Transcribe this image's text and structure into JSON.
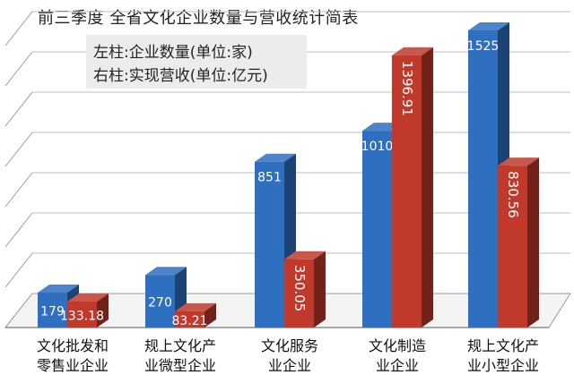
{
  "chart_data": {
    "type": "bar",
    "title": "前三季度 全省文化企业数量与营收统计简表",
    "legend": [
      "左柱:企业数量(单位:家)",
      "右柱:实现营收(单位:亿元)"
    ],
    "categories": [
      [
        "文化批发和",
        "零售业企业"
      ],
      [
        "规上文化产",
        "业微型企业"
      ],
      [
        "文化服务",
        "业企业"
      ],
      [
        "文化制造",
        "业企业"
      ],
      [
        "规上文化产",
        "业小型企业"
      ]
    ],
    "series": [
      {
        "values": [
          179,
          270,
          851,
          1010,
          1525
        ],
        "labels": [
          "179",
          "270",
          "851",
          "1010",
          "1525"
        ],
        "color": "#2f6fbf"
      },
      {
        "values": [
          133.18,
          83.21,
          350.05,
          1396.91,
          830.56
        ],
        "labels": [
          "133.18",
          "83.21",
          "350.05",
          "1396.91",
          "830.56"
        ],
        "color": "#c0392b"
      }
    ],
    "grid": true,
    "legend_position": "top-left"
  }
}
